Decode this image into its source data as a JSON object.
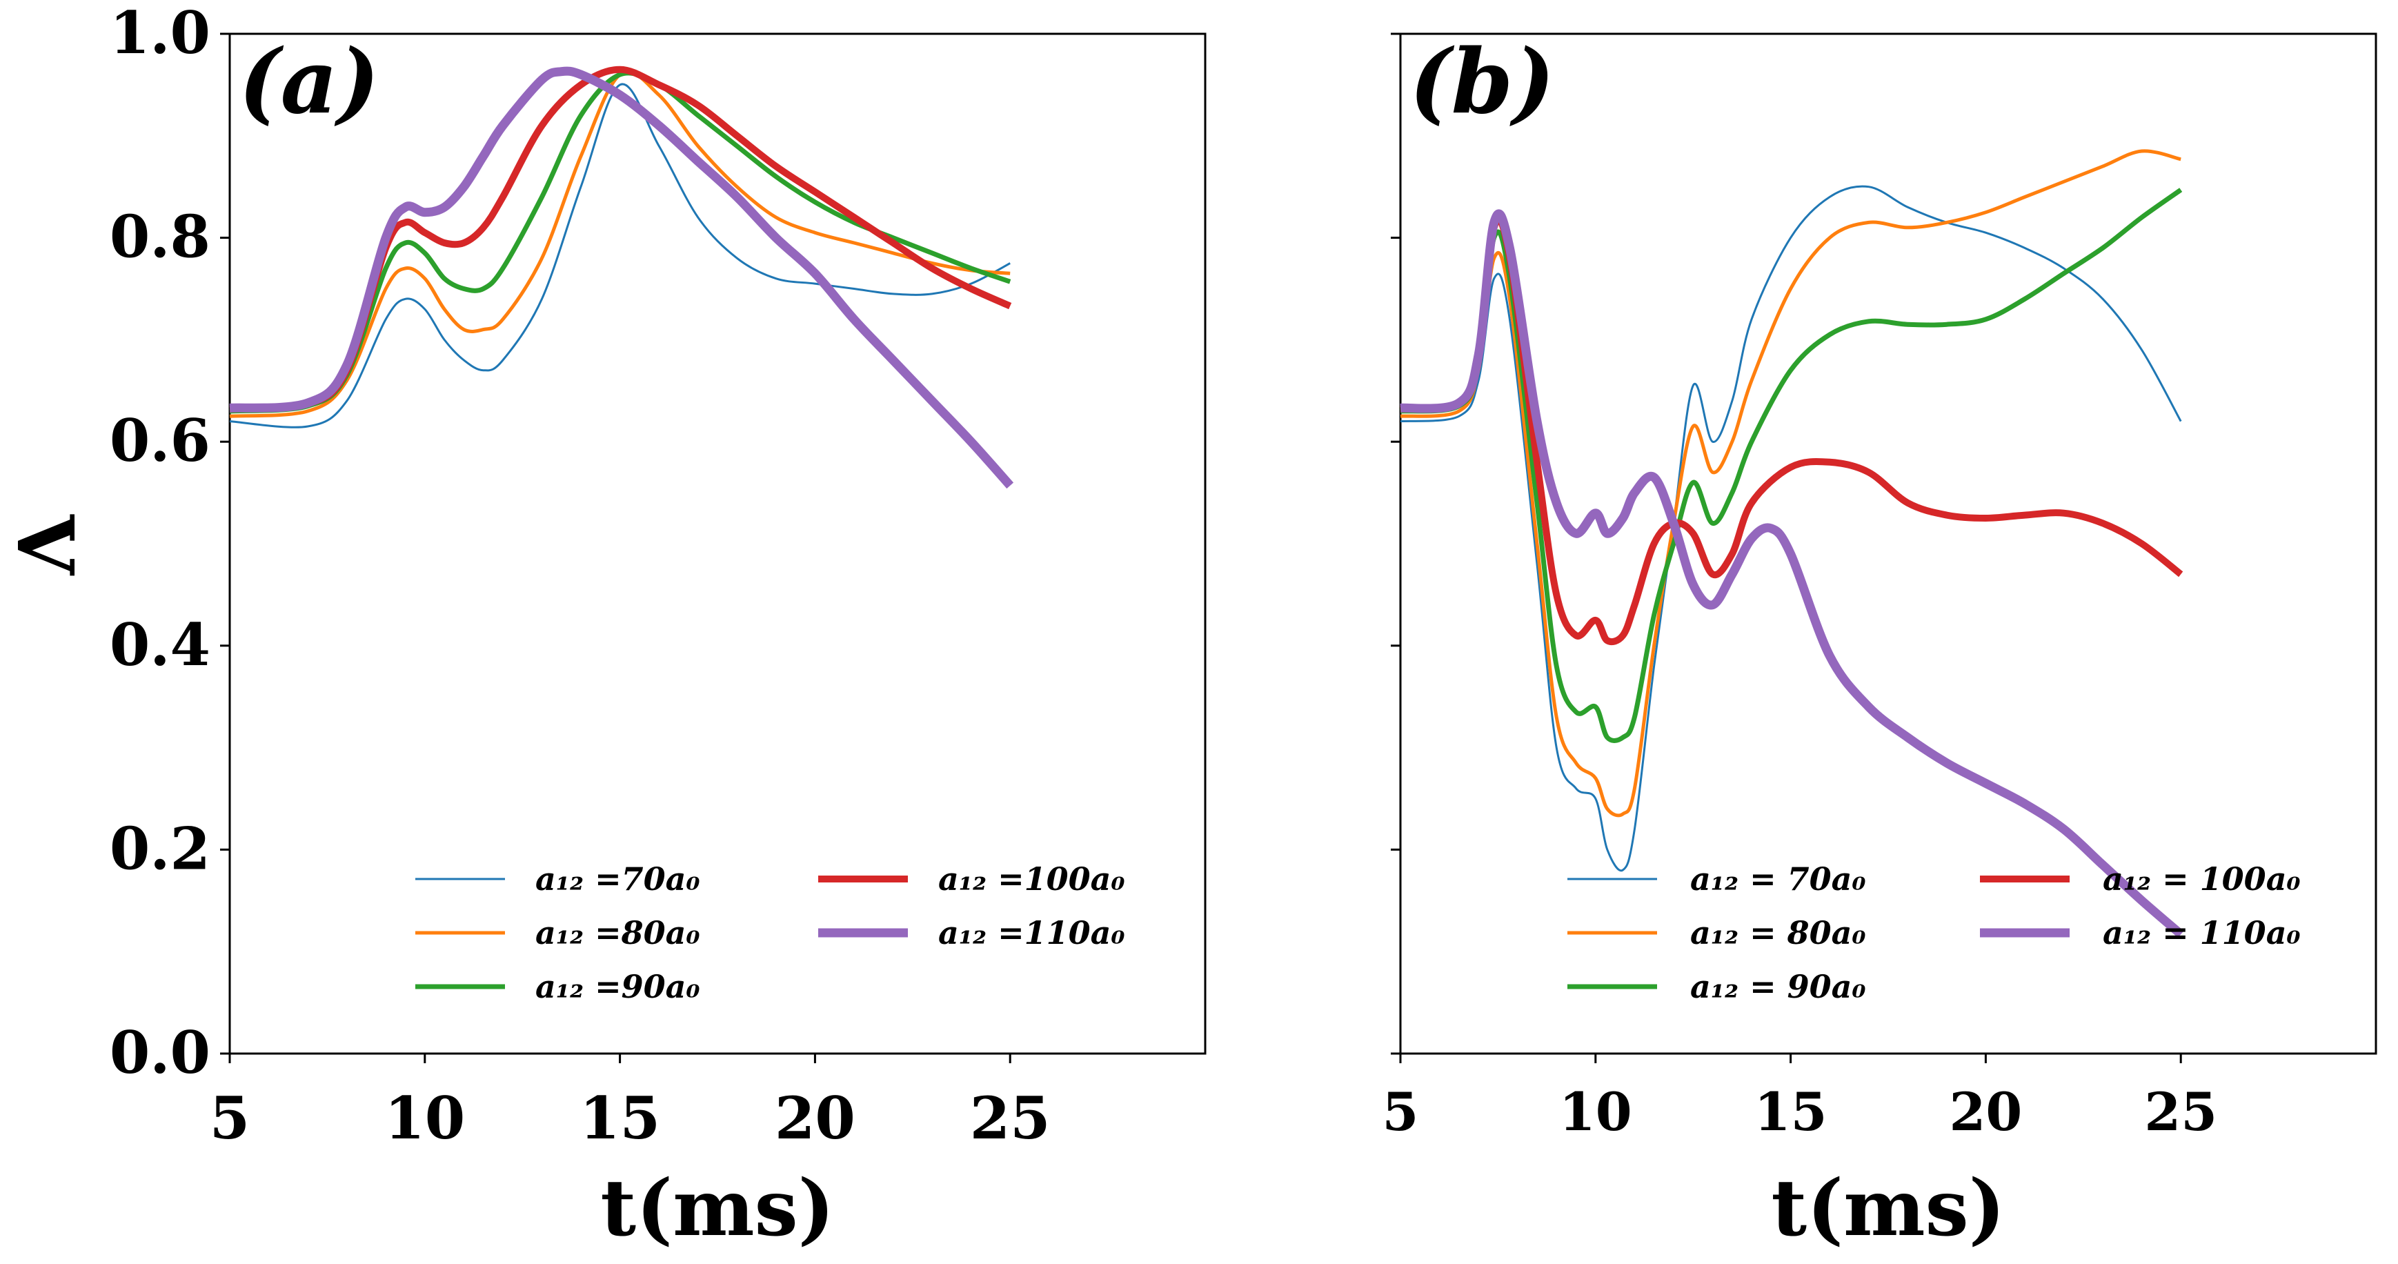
{
  "chart_data": [
    {
      "type": "line",
      "panel_label": "(a)",
      "xlabel": "t(ms)",
      "ylabel": "Λ",
      "xlim": [
        5,
        30
      ],
      "ylim": [
        0.0,
        1.0
      ],
      "xticks": [
        "5",
        "10",
        "15",
        "20",
        "25"
      ],
      "yticks": [
        "0.0",
        "0.2",
        "0.4",
        "0.6",
        "0.8",
        "1.0"
      ],
      "legend_position": "lower-right",
      "series": [
        {
          "name": "a12 =70a0",
          "label": "a₁₂ =70a₀",
          "color": "#1f77b4",
          "x": [
            5,
            7,
            8,
            9,
            9.5,
            10,
            10.5,
            11,
            11.5,
            12,
            13,
            14,
            15,
            16,
            17,
            18,
            19,
            20,
            21,
            22,
            23,
            24,
            25
          ],
          "y": [
            0.62,
            0.615,
            0.64,
            0.72,
            0.74,
            0.73,
            0.7,
            0.68,
            0.67,
            0.68,
            0.74,
            0.85,
            0.95,
            0.89,
            0.82,
            0.78,
            0.76,
            0.755,
            0.75,
            0.745,
            0.745,
            0.755,
            0.775
          ]
        },
        {
          "name": "a12 =80a0",
          "label": "a₁₂ =80a₀",
          "color": "#ff7f0e",
          "x": [
            5,
            7,
            8,
            9,
            9.5,
            10,
            10.5,
            11,
            11.5,
            12,
            13,
            14,
            15,
            16,
            17,
            18,
            19,
            20,
            21,
            22,
            23,
            24,
            25
          ],
          "y": [
            0.625,
            0.63,
            0.66,
            0.75,
            0.77,
            0.76,
            0.73,
            0.71,
            0.71,
            0.72,
            0.78,
            0.88,
            0.96,
            0.94,
            0.89,
            0.85,
            0.82,
            0.805,
            0.795,
            0.785,
            0.775,
            0.768,
            0.765
          ]
        },
        {
          "name": "a12 =90a0",
          "label": "a₁₂ =90a₀",
          "color": "#2ca02c",
          "x": [
            5,
            7,
            8,
            9,
            9.5,
            10,
            10.5,
            11,
            11.5,
            12,
            13,
            14,
            15,
            16,
            17,
            18,
            19,
            20,
            21,
            22,
            23,
            24,
            25
          ],
          "y": [
            0.63,
            0.635,
            0.665,
            0.77,
            0.795,
            0.785,
            0.76,
            0.75,
            0.75,
            0.77,
            0.84,
            0.92,
            0.96,
            0.95,
            0.92,
            0.89,
            0.86,
            0.835,
            0.815,
            0.8,
            0.785,
            0.77,
            0.757
          ]
        },
        {
          "name": "a12 =100a0",
          "label": "a₁₂ =100a₀",
          "color": "#d62728",
          "x": [
            5,
            7,
            8,
            9,
            9.5,
            10,
            10.5,
            11,
            11.5,
            12,
            13,
            14,
            15,
            16,
            17,
            18,
            19,
            20,
            21,
            22,
            23,
            24,
            25
          ],
          "y": [
            0.632,
            0.637,
            0.67,
            0.79,
            0.815,
            0.805,
            0.795,
            0.795,
            0.81,
            0.84,
            0.91,
            0.95,
            0.965,
            0.95,
            0.93,
            0.9,
            0.87,
            0.845,
            0.82,
            0.795,
            0.77,
            0.75,
            0.733
          ]
        },
        {
          "name": "a12 =110a0",
          "label": "a₁₂ =110a₀",
          "color": "#9467bd",
          "x": [
            5,
            7,
            8,
            9,
            9.5,
            10,
            10.5,
            11,
            11.5,
            12,
            13,
            13.5,
            14,
            15,
            16,
            17,
            18,
            19,
            20,
            21,
            22,
            23,
            24,
            25
          ],
          "y": [
            0.633,
            0.638,
            0.675,
            0.8,
            0.83,
            0.825,
            0.83,
            0.85,
            0.88,
            0.91,
            0.955,
            0.963,
            0.96,
            0.94,
            0.91,
            0.875,
            0.84,
            0.8,
            0.765,
            0.72,
            0.68,
            0.64,
            0.6,
            0.557
          ]
        }
      ]
    },
    {
      "type": "line",
      "panel_label": "(b)",
      "xlabel": "t(ms)",
      "ylabel": "",
      "xlim": [
        5,
        30
      ],
      "ylim": [
        0.0,
        1.0
      ],
      "xticks": [
        "5",
        "10",
        "15",
        "20",
        "25"
      ],
      "yticks": [],
      "legend_position": "lower-right",
      "series": [
        {
          "name": "a12 = 70a0",
          "label": "a₁₂ = 70a₀",
          "color": "#1f77b4",
          "x": [
            5,
            6.5,
            7,
            7.4,
            7.8,
            8.5,
            9,
            9.5,
            10,
            10.3,
            10.7,
            11,
            11.5,
            12,
            12.5,
            13,
            13.5,
            14,
            15,
            16,
            17,
            18,
            19,
            20,
            21,
            22,
            23,
            24,
            25
          ],
          "y": [
            0.62,
            0.625,
            0.66,
            0.76,
            0.72,
            0.48,
            0.3,
            0.26,
            0.25,
            0.2,
            0.18,
            0.22,
            0.38,
            0.52,
            0.655,
            0.6,
            0.64,
            0.72,
            0.8,
            0.84,
            0.85,
            0.83,
            0.815,
            0.805,
            0.79,
            0.77,
            0.74,
            0.69,
            0.62
          ]
        },
        {
          "name": "a12 = 80a0",
          "label": "a₁₂ = 80a₀",
          "color": "#ff7f0e",
          "x": [
            5,
            6.5,
            7,
            7.4,
            7.8,
            8.5,
            9,
            9.5,
            10,
            10.3,
            10.7,
            11,
            11.5,
            12,
            12.5,
            13,
            13.5,
            14,
            15,
            16,
            17,
            18,
            19,
            20,
            21,
            22,
            23,
            24,
            25
          ],
          "y": [
            0.625,
            0.63,
            0.67,
            0.78,
            0.74,
            0.5,
            0.33,
            0.285,
            0.27,
            0.24,
            0.235,
            0.26,
            0.4,
            0.52,
            0.615,
            0.57,
            0.6,
            0.66,
            0.75,
            0.8,
            0.815,
            0.81,
            0.815,
            0.825,
            0.84,
            0.855,
            0.87,
            0.885,
            0.877
          ]
        },
        {
          "name": "a12 = 90a0",
          "label": "a₁₂ = 90a₀",
          "color": "#2ca02c",
          "x": [
            5,
            6.5,
            7,
            7.4,
            7.8,
            8.5,
            9,
            9.5,
            10,
            10.3,
            10.7,
            11,
            11.5,
            12,
            12.5,
            13,
            13.5,
            14,
            15,
            16,
            17,
            18,
            19,
            20,
            21,
            22,
            23,
            24,
            25
          ],
          "y": [
            0.63,
            0.635,
            0.675,
            0.8,
            0.76,
            0.54,
            0.38,
            0.335,
            0.34,
            0.31,
            0.31,
            0.33,
            0.43,
            0.5,
            0.56,
            0.52,
            0.55,
            0.6,
            0.67,
            0.705,
            0.718,
            0.715,
            0.715,
            0.72,
            0.74,
            0.765,
            0.79,
            0.82,
            0.847
          ]
        },
        {
          "name": "a12 = 100a0",
          "label": "a₁₂ = 100a₀",
          "color": "#d62728",
          "x": [
            5,
            6.5,
            7,
            7.4,
            7.8,
            8.5,
            9,
            9.5,
            10,
            10.3,
            10.7,
            11,
            11.5,
            12,
            12.5,
            13,
            13.5,
            14,
            15,
            16,
            17,
            18,
            19,
            20,
            21,
            22,
            23,
            24,
            25
          ],
          "y": [
            0.632,
            0.637,
            0.68,
            0.81,
            0.78,
            0.58,
            0.45,
            0.41,
            0.425,
            0.405,
            0.41,
            0.44,
            0.5,
            0.52,
            0.51,
            0.47,
            0.49,
            0.54,
            0.575,
            0.58,
            0.57,
            0.54,
            0.528,
            0.525,
            0.528,
            0.53,
            0.52,
            0.5,
            0.47
          ]
        },
        {
          "name": "a12 = 110a0",
          "label": "a₁₂ = 110a₀",
          "color": "#9467bd",
          "x": [
            5,
            6.5,
            7,
            7.4,
            7.8,
            8.5,
            9,
            9.5,
            10,
            10.3,
            10.7,
            11,
            11.5,
            12,
            12.5,
            13,
            13.5,
            14,
            14.5,
            15,
            16,
            17,
            18,
            19,
            20,
            21,
            22,
            23,
            24,
            25
          ],
          "y": [
            0.633,
            0.638,
            0.685,
            0.815,
            0.79,
            0.62,
            0.54,
            0.51,
            0.53,
            0.51,
            0.525,
            0.55,
            0.565,
            0.52,
            0.46,
            0.44,
            0.47,
            0.505,
            0.515,
            0.49,
            0.39,
            0.34,
            0.31,
            0.285,
            0.265,
            0.245,
            0.22,
            0.185,
            0.15,
            0.117
          ]
        }
      ]
    }
  ]
}
